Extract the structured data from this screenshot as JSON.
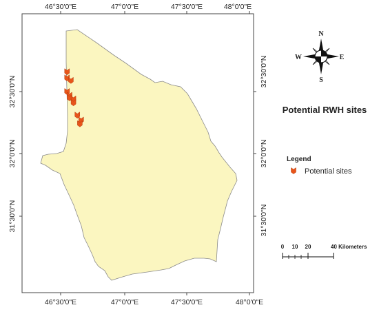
{
  "map": {
    "title": "Potential RWH sites",
    "fill_color": "#fbf6c0",
    "border_color": "#8a8a8a",
    "marker_color": "#e8551a",
    "longitude_labels": [
      "46°30'0\"E",
      "47°0'0\"E",
      "47°30'0\"E",
      "48°0'0\"E"
    ],
    "latitude_labels": [
      "32°30'0\"N",
      "32°0'0\"N",
      "31°30'0\"N"
    ],
    "sites": [
      {
        "lon": 46.55,
        "lat": 32.66
      },
      {
        "lon": 46.55,
        "lat": 32.61
      },
      {
        "lon": 46.58,
        "lat": 32.59
      },
      {
        "lon": 46.55,
        "lat": 32.5
      },
      {
        "lon": 46.57,
        "lat": 32.47
      },
      {
        "lon": 46.57,
        "lat": 32.45
      },
      {
        "lon": 46.6,
        "lat": 32.44
      },
      {
        "lon": 46.6,
        "lat": 32.41
      },
      {
        "lon": 46.63,
        "lat": 32.31
      },
      {
        "lon": 46.66,
        "lat": 32.27
      },
      {
        "lon": 46.65,
        "lat": 32.24
      }
    ]
  },
  "legend": {
    "title": "Legend",
    "entry_label": "Potential sites"
  },
  "north_arrow": {
    "n": "N",
    "s": "S",
    "e": "E",
    "w": "W",
    "icon": "compass-rose-icon"
  },
  "scale_bar": {
    "labels": [
      "0",
      "10",
      "20",
      "40 Kilometers"
    ]
  }
}
